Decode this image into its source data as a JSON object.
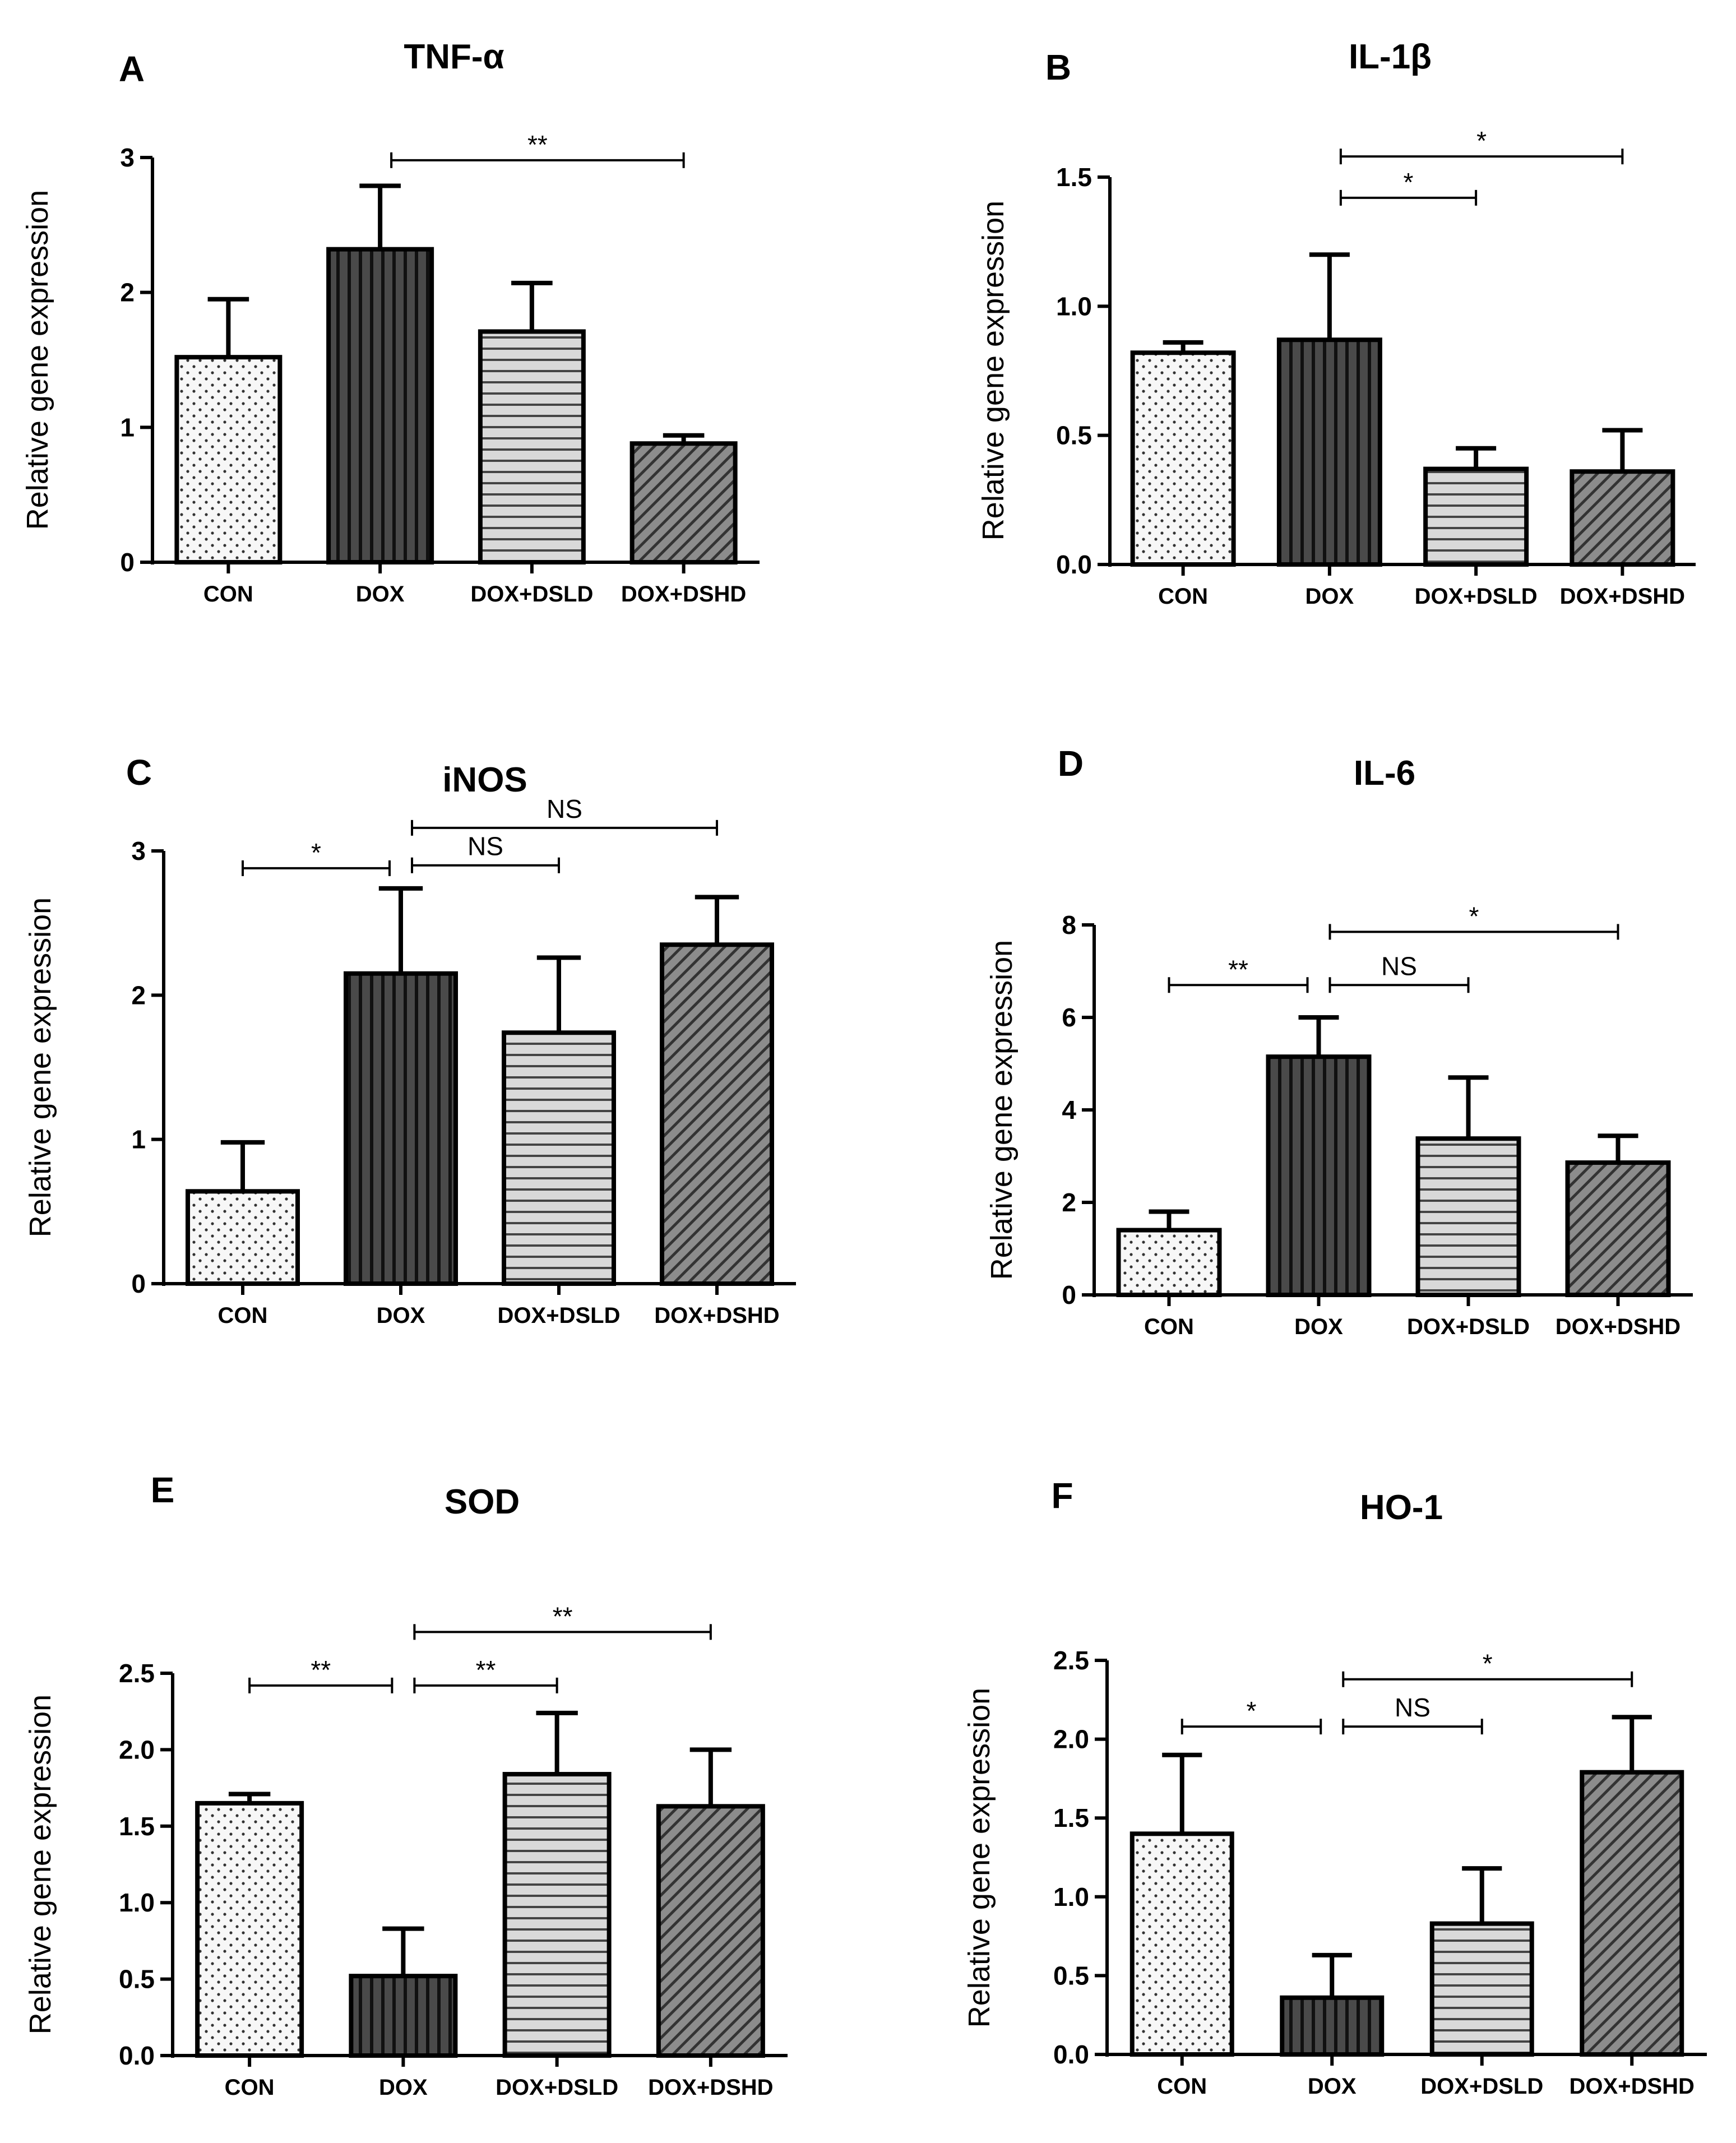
{
  "chart_data": [
    {
      "panel": "A",
      "type": "bar",
      "title": "TNF-α",
      "ylabel": "Relative gene expression",
      "xlabel": "",
      "categories": [
        "CON",
        "DOX",
        "DOX+DSLD",
        "DOX+DSHD"
      ],
      "values": [
        1.52,
        2.32,
        1.71,
        0.88
      ],
      "errors": [
        0.43,
        0.47,
        0.36,
        0.06
      ],
      "ylim": [
        0,
        3
      ],
      "yticks": [
        "0",
        "1",
        "2",
        "3"
      ],
      "ytick_values": [
        0,
        1,
        2,
        3
      ],
      "significance": [
        {
          "from": 1,
          "to": 3,
          "label": "**",
          "y": 2.98
        }
      ]
    },
    {
      "panel": "B",
      "type": "bar",
      "title": "IL-1β",
      "ylabel": "Relative gene expression",
      "xlabel": "",
      "categories": [
        "CON",
        "DOX",
        "DOX+DSLD",
        "DOX+DSHD"
      ],
      "values": [
        0.82,
        0.87,
        0.37,
        0.36
      ],
      "errors": [
        0.04,
        0.33,
        0.08,
        0.16
      ],
      "ylim": [
        0,
        1.5
      ],
      "yticks": [
        "0.0",
        "0.5",
        "1.0",
        "1.5"
      ],
      "ytick_values": [
        0,
        0.5,
        1,
        1.5
      ],
      "significance": [
        {
          "from": 1,
          "to": 2,
          "label": "*",
          "y": 1.42
        },
        {
          "from": 1,
          "to": 3,
          "label": "*",
          "y": 1.58
        }
      ]
    },
    {
      "panel": "C",
      "type": "bar",
      "title": "iNOS",
      "ylabel": "Relative gene expression",
      "xlabel": "",
      "categories": [
        "CON",
        "DOX",
        "DOX+DSLD",
        "DOX+DSHD"
      ],
      "values": [
        0.64,
        2.15,
        1.74,
        2.35
      ],
      "errors": [
        0.34,
        0.59,
        0.52,
        0.33
      ],
      "ylim": [
        0,
        3
      ],
      "yticks": [
        "0",
        "1",
        "2",
        "3"
      ],
      "ytick_values": [
        0,
        1,
        2,
        3
      ],
      "significance": [
        {
          "from": 0,
          "to": 1,
          "label": "*",
          "y": 2.88
        },
        {
          "from": 1,
          "to": 2,
          "label": "NS",
          "y": 2.9
        },
        {
          "from": 1,
          "to": 3,
          "label": "NS",
          "y": 3.16
        }
      ]
    },
    {
      "panel": "D",
      "type": "bar",
      "title": "IL-6",
      "ylabel": "Relative gene expression",
      "xlabel": "",
      "categories": [
        "CON",
        "DOX",
        "DOX+DSLD",
        "DOX+DSHD"
      ],
      "values": [
        1.4,
        5.15,
        3.38,
        2.86
      ],
      "errors": [
        0.4,
        0.85,
        1.32,
        0.58
      ],
      "ylim": [
        0,
        8
      ],
      "yticks": [
        "0",
        "2",
        "4",
        "6",
        "8"
      ],
      "ytick_values": [
        0,
        2,
        4,
        6,
        8
      ],
      "significance": [
        {
          "from": 0,
          "to": 1,
          "label": "**",
          "y": 6.7
        },
        {
          "from": 1,
          "to": 2,
          "label": "NS",
          "y": 6.7
        },
        {
          "from": 1,
          "to": 3,
          "label": "*",
          "y": 7.85
        }
      ]
    },
    {
      "panel": "E",
      "type": "bar",
      "title": "SOD",
      "ylabel": "Relative gene expression",
      "xlabel": "",
      "categories": [
        "CON",
        "DOX",
        "DOX+DSLD",
        "DOX+DSHD"
      ],
      "values": [
        1.65,
        0.52,
        1.84,
        1.63
      ],
      "errors": [
        0.06,
        0.31,
        0.4,
        0.37
      ],
      "ylim": [
        0,
        2.5
      ],
      "yticks": [
        "0.0",
        "0.5",
        "1.0",
        "1.5",
        "2.0",
        "2.5"
      ],
      "ytick_values": [
        0,
        0.5,
        1,
        1.5,
        2,
        2.5
      ],
      "significance": [
        {
          "from": 0,
          "to": 1,
          "label": "**",
          "y": 2.42
        },
        {
          "from": 1,
          "to": 2,
          "label": "**",
          "y": 2.42
        },
        {
          "from": 1,
          "to": 3,
          "label": "**",
          "y": 2.77
        }
      ]
    },
    {
      "panel": "F",
      "type": "bar",
      "title": "HO-1",
      "ylabel": "Relative gene expression",
      "xlabel": "",
      "categories": [
        "CON",
        "DOX",
        "DOX+DSLD",
        "DOX+DSHD"
      ],
      "values": [
        1.4,
        0.36,
        0.83,
        1.79
      ],
      "errors": [
        0.5,
        0.27,
        0.35,
        0.35
      ],
      "ylim": [
        0,
        2.5
      ],
      "yticks": [
        "0.0",
        "0.5",
        "1.0",
        "1.5",
        "2.0",
        "2.5"
      ],
      "ytick_values": [
        0,
        0.5,
        1,
        1.5,
        2,
        2.5
      ],
      "significance": [
        {
          "from": 0,
          "to": 1,
          "label": "*",
          "y": 2.08
        },
        {
          "from": 1,
          "to": 2,
          "label": "NS",
          "y": 2.08
        },
        {
          "from": 1,
          "to": 3,
          "label": "*",
          "y": 2.38
        }
      ]
    }
  ]
}
